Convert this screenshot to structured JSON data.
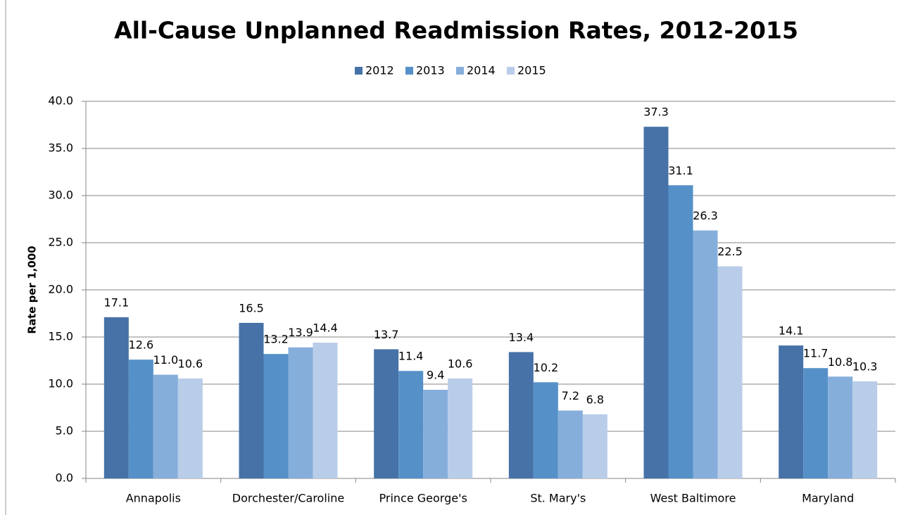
{
  "chart_data": {
    "type": "bar",
    "title": "All-Cause Unplanned Readmission Rates, 2012-2015",
    "y_label": "Rate per 1,000",
    "categories": [
      "Annapolis",
      "Dorchester/Caroline",
      "Prince George's",
      "St. Mary's",
      "West Baltimore",
      "Maryland"
    ],
    "series": [
      {
        "name": "2012",
        "color": "#4672a8",
        "values": [
          17.1,
          16.5,
          13.7,
          13.4,
          37.3,
          14.1
        ]
      },
      {
        "name": "2013",
        "color": "#5591c8",
        "values": [
          12.6,
          13.2,
          11.4,
          10.2,
          31.1,
          11.7
        ]
      },
      {
        "name": "2014",
        "color": "#86aedb",
        "values": [
          11.0,
          13.9,
          9.4,
          7.2,
          26.3,
          10.8
        ],
        "value_labels": [
          "11.0",
          "13.9",
          "9.4",
          "7.2",
          "26.3",
          "10.8"
        ]
      },
      {
        "name": "2015",
        "color": "#b9cde8",
        "values": [
          10.6,
          14.4,
          10.6,
          6.8,
          22.5,
          10.3
        ]
      }
    ],
    "ylim": [
      0,
      40
    ],
    "yticks": [
      {
        "value": 0,
        "label": "0.0"
      },
      {
        "value": 5,
        "label": "5.0"
      },
      {
        "value": 10,
        "label": "10.0"
      },
      {
        "value": 15,
        "label": "15.0"
      },
      {
        "value": 20,
        "label": "20.0"
      },
      {
        "value": 25,
        "label": "25.0"
      },
      {
        "value": 30,
        "label": "30.0"
      },
      {
        "value": 35,
        "label": "35.0"
      },
      {
        "value": 40,
        "label": "40.0"
      }
    ],
    "grid": true,
    "legend": "top"
  }
}
